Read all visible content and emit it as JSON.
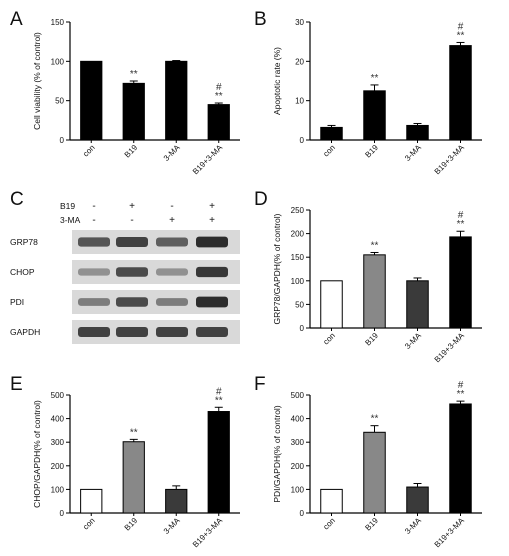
{
  "panels": {
    "a": "A",
    "b": "B",
    "c": "C",
    "d": "D",
    "e": "E",
    "f": "F"
  },
  "chart_data": [
    {
      "id": "A",
      "type": "bar",
      "ylabel": "Cell viability (% of control)",
      "categories": [
        "con",
        "B19",
        "3-MA",
        "B19+3-MA"
      ],
      "values": [
        100,
        72,
        100,
        45
      ],
      "errors": [
        0,
        3,
        1,
        2
      ],
      "colors": [
        "#000000",
        "#000000",
        "#000000",
        "#000000"
      ],
      "annotations": [
        "",
        "**",
        "",
        "#\n**"
      ],
      "ylim": [
        0,
        150
      ],
      "yticks": [
        0,
        50,
        100,
        150
      ]
    },
    {
      "id": "B",
      "type": "bar",
      "ylabel": "Apoptotic rate (%)",
      "categories": [
        "con",
        "B19",
        "3-MA",
        "B19+3-MA"
      ],
      "values": [
        3.2,
        12.5,
        3.7,
        24
      ],
      "errors": [
        0.5,
        1.5,
        0.5,
        0.8
      ],
      "colors": [
        "#000000",
        "#000000",
        "#000000",
        "#000000"
      ],
      "annotations": [
        "",
        "**",
        "",
        "#\n**"
      ],
      "ylim": [
        0,
        30
      ],
      "yticks": [
        0,
        10,
        20,
        30
      ]
    },
    {
      "id": "D",
      "type": "bar",
      "ylabel": "GRP78/GAPDH(% of control)",
      "categories": [
        "con",
        "B19",
        "3-MA",
        "B19+3-MA"
      ],
      "values": [
        100,
        155,
        100,
        193
      ],
      "errors": [
        0,
        5,
        6,
        12
      ],
      "colors": [
        "#ffffff",
        "#888888",
        "#3a3a3a",
        "#000000"
      ],
      "annotations": [
        "",
        "**",
        "",
        "#\n**"
      ],
      "ylim": [
        0,
        250
      ],
      "yticks": [
        0,
        50,
        100,
        150,
        200,
        250
      ]
    },
    {
      "id": "E",
      "type": "bar",
      "ylabel": "CHOP/GAPDH(% of control)",
      "categories": [
        "con",
        "B19",
        "3-MA",
        "B19+3-MA"
      ],
      "values": [
        100,
        302,
        100,
        430
      ],
      "errors": [
        0,
        10,
        15,
        18
      ],
      "colors": [
        "#ffffff",
        "#888888",
        "#3a3a3a",
        "#000000"
      ],
      "annotations": [
        "",
        "**",
        "",
        "#\n**"
      ],
      "ylim": [
        0,
        500
      ],
      "yticks": [
        0,
        100,
        200,
        300,
        400,
        500
      ]
    },
    {
      "id": "F",
      "type": "bar",
      "ylabel": "PDI/GAPDH(% of control)",
      "categories": [
        "con",
        "B19",
        "3-MA",
        "B19+3-MA"
      ],
      "values": [
        100,
        342,
        110,
        462
      ],
      "errors": [
        0,
        28,
        15,
        12
      ],
      "colors": [
        "#ffffff",
        "#888888",
        "#3a3a3a",
        "#000000"
      ],
      "annotations": [
        "",
        "**",
        "",
        "#\n**"
      ],
      "ylim": [
        0,
        500
      ],
      "yticks": [
        0,
        100,
        200,
        300,
        400,
        500
      ]
    }
  ],
  "blot": {
    "treatments": [
      {
        "name": "B19",
        "signs": [
          "-",
          "+",
          "-",
          "+"
        ]
      },
      {
        "name": "3-MA",
        "signs": [
          "-",
          "-",
          "+",
          "+"
        ]
      }
    ],
    "rows": [
      {
        "label": "GRP78",
        "intensity": [
          0.75,
          0.85,
          0.7,
          0.95
        ]
      },
      {
        "label": "CHOP",
        "intensity": [
          0.45,
          0.8,
          0.45,
          0.9
        ]
      },
      {
        "label": "PDI",
        "intensity": [
          0.55,
          0.8,
          0.55,
          0.95
        ]
      },
      {
        "label": "GAPDH",
        "intensity": [
          0.85,
          0.85,
          0.85,
          0.85
        ]
      }
    ]
  }
}
